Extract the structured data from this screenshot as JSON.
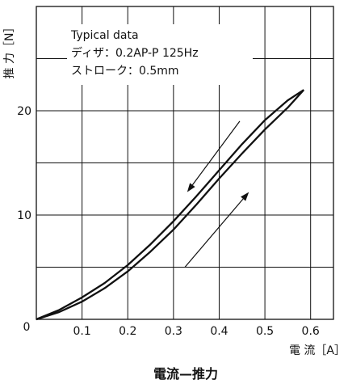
{
  "chart_data": {
    "type": "line",
    "title": "電流—推力",
    "xlabel": "電 流［A］",
    "ylabel": "推 力［N］",
    "xlim": [
      0,
      0.65
    ],
    "ylim": [
      0,
      30
    ],
    "x_ticks": [
      0.1,
      0.2,
      0.3,
      0.4,
      0.5,
      0.6
    ],
    "y_ticks": [
      10,
      20
    ],
    "x_tick_labels": [
      "0.1",
      "0.2",
      "0.3",
      "0.4",
      "0.5",
      "0.6"
    ],
    "y_tick_labels": [
      "10",
      "20"
    ],
    "origin_label": "0",
    "grid": true,
    "annotation_lines": [
      "Typical data",
      "ディザ：0.2AP-P 125Hz",
      "ストローク：0.5mm"
    ],
    "series": [
      {
        "x": [
          0,
          0.05,
          0.1,
          0.15,
          0.2,
          0.25,
          0.3,
          0.35,
          0.4,
          0.45,
          0.5,
          0.55,
          0.585
        ],
        "y": [
          0,
          0.7,
          1.7,
          3.0,
          4.6,
          6.5,
          8.6,
          11.0,
          13.5,
          15.9,
          18.2,
          20.3,
          22.0
        ]
      },
      {
        "x": [
          0,
          0.05,
          0.1,
          0.15,
          0.2,
          0.25,
          0.3,
          0.35,
          0.4,
          0.45,
          0.5,
          0.55,
          0.585
        ],
        "y": [
          0,
          0.9,
          2.1,
          3.5,
          5.2,
          7.2,
          9.4,
          11.8,
          14.3,
          16.8,
          19.1,
          21.0,
          22.0
        ]
      }
    ],
    "arrows": [
      {
        "direction": "decreasing",
        "from": [
          0.445,
          19.0
        ],
        "to": [
          0.33,
          12.2
        ]
      },
      {
        "direction": "increasing",
        "from": [
          0.325,
          5.0
        ],
        "to": [
          0.465,
          12.2
        ]
      }
    ]
  }
}
